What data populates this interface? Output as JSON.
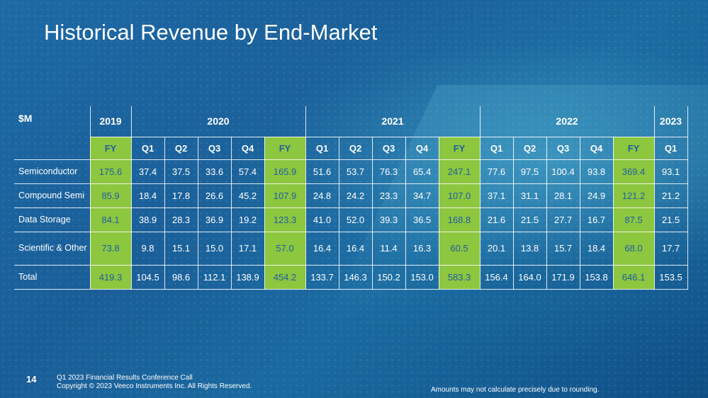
{
  "title": "Historical Revenue by End-Market",
  "chart_data": {
    "type": "table",
    "unit_label": "$M",
    "years": [
      {
        "label": "2019",
        "span": 1
      },
      {
        "label": "2020",
        "span": 5
      },
      {
        "label": "2021",
        "span": 5
      },
      {
        "label": "2022",
        "span": 5
      },
      {
        "label": "2023",
        "span": 1
      }
    ],
    "columns": [
      "FY",
      "Q1",
      "Q2",
      "Q3",
      "Q4",
      "FY",
      "Q1",
      "Q2",
      "Q3",
      "Q4",
      "FY",
      "Q1",
      "Q2",
      "Q3",
      "Q4",
      "FY",
      "Q1"
    ],
    "fy_columns": [
      0,
      5,
      10,
      15
    ],
    "rows": [
      {
        "label": "Semiconductor",
        "values": [
          "175.6",
          "37.4",
          "37.5",
          "33.6",
          "57.4",
          "165.9",
          "51.6",
          "53.7",
          "76.3",
          "65.4",
          "247.1",
          "77.6",
          "97.5",
          "100.4",
          "93.8",
          "369.4",
          "93.1"
        ]
      },
      {
        "label": "Compound Semi",
        "values": [
          "85.9",
          "18.4",
          "17.8",
          "26.6",
          "45.2",
          "107.9",
          "24.8",
          "24.2",
          "23.3",
          "34.7",
          "107.0",
          "37.1",
          "31.1",
          "28.1",
          "24.9",
          "121.2",
          "21.2"
        ]
      },
      {
        "label": "Data Storage",
        "values": [
          "84.1",
          "38.9",
          "28.3",
          "36.9",
          "19.2",
          "123.3",
          "41.0",
          "52.0",
          "39.3",
          "36.5",
          "168.8",
          "21.6",
          "21.5",
          "27.7",
          "16.7",
          "87.5",
          "21.5"
        ]
      },
      {
        "label": "Scientific & Other",
        "values": [
          "73.8",
          "9.8",
          "15.1",
          "15.0",
          "17.1",
          "57.0",
          "16.4",
          "16.4",
          "11.4",
          "16.3",
          "60.5",
          "20.1",
          "13.8",
          "15.7",
          "18.4",
          "68.0",
          "17.7"
        ]
      },
      {
        "label": "Total",
        "values": [
          "419.3",
          "104.5",
          "98.6",
          "112.1",
          "138.9",
          "454.2",
          "133.7",
          "146.3",
          "150.2",
          "153.0",
          "583.3",
          "156.4",
          "164.0",
          "171.9",
          "153.8",
          "646.1",
          "153.5"
        ]
      }
    ]
  },
  "footer": {
    "page_number": "14",
    "line1": "Q1 2023 Financial Results Conference Call",
    "line2": "Copyright © 2023 Veeco Instruments Inc. All Rights Reserved.",
    "note": "Amounts may not calculate precisely due to rounding."
  },
  "colors": {
    "fy_fill": "#8dc63f",
    "fy_text": "#1e5fa0",
    "background": "#1a5e98"
  }
}
